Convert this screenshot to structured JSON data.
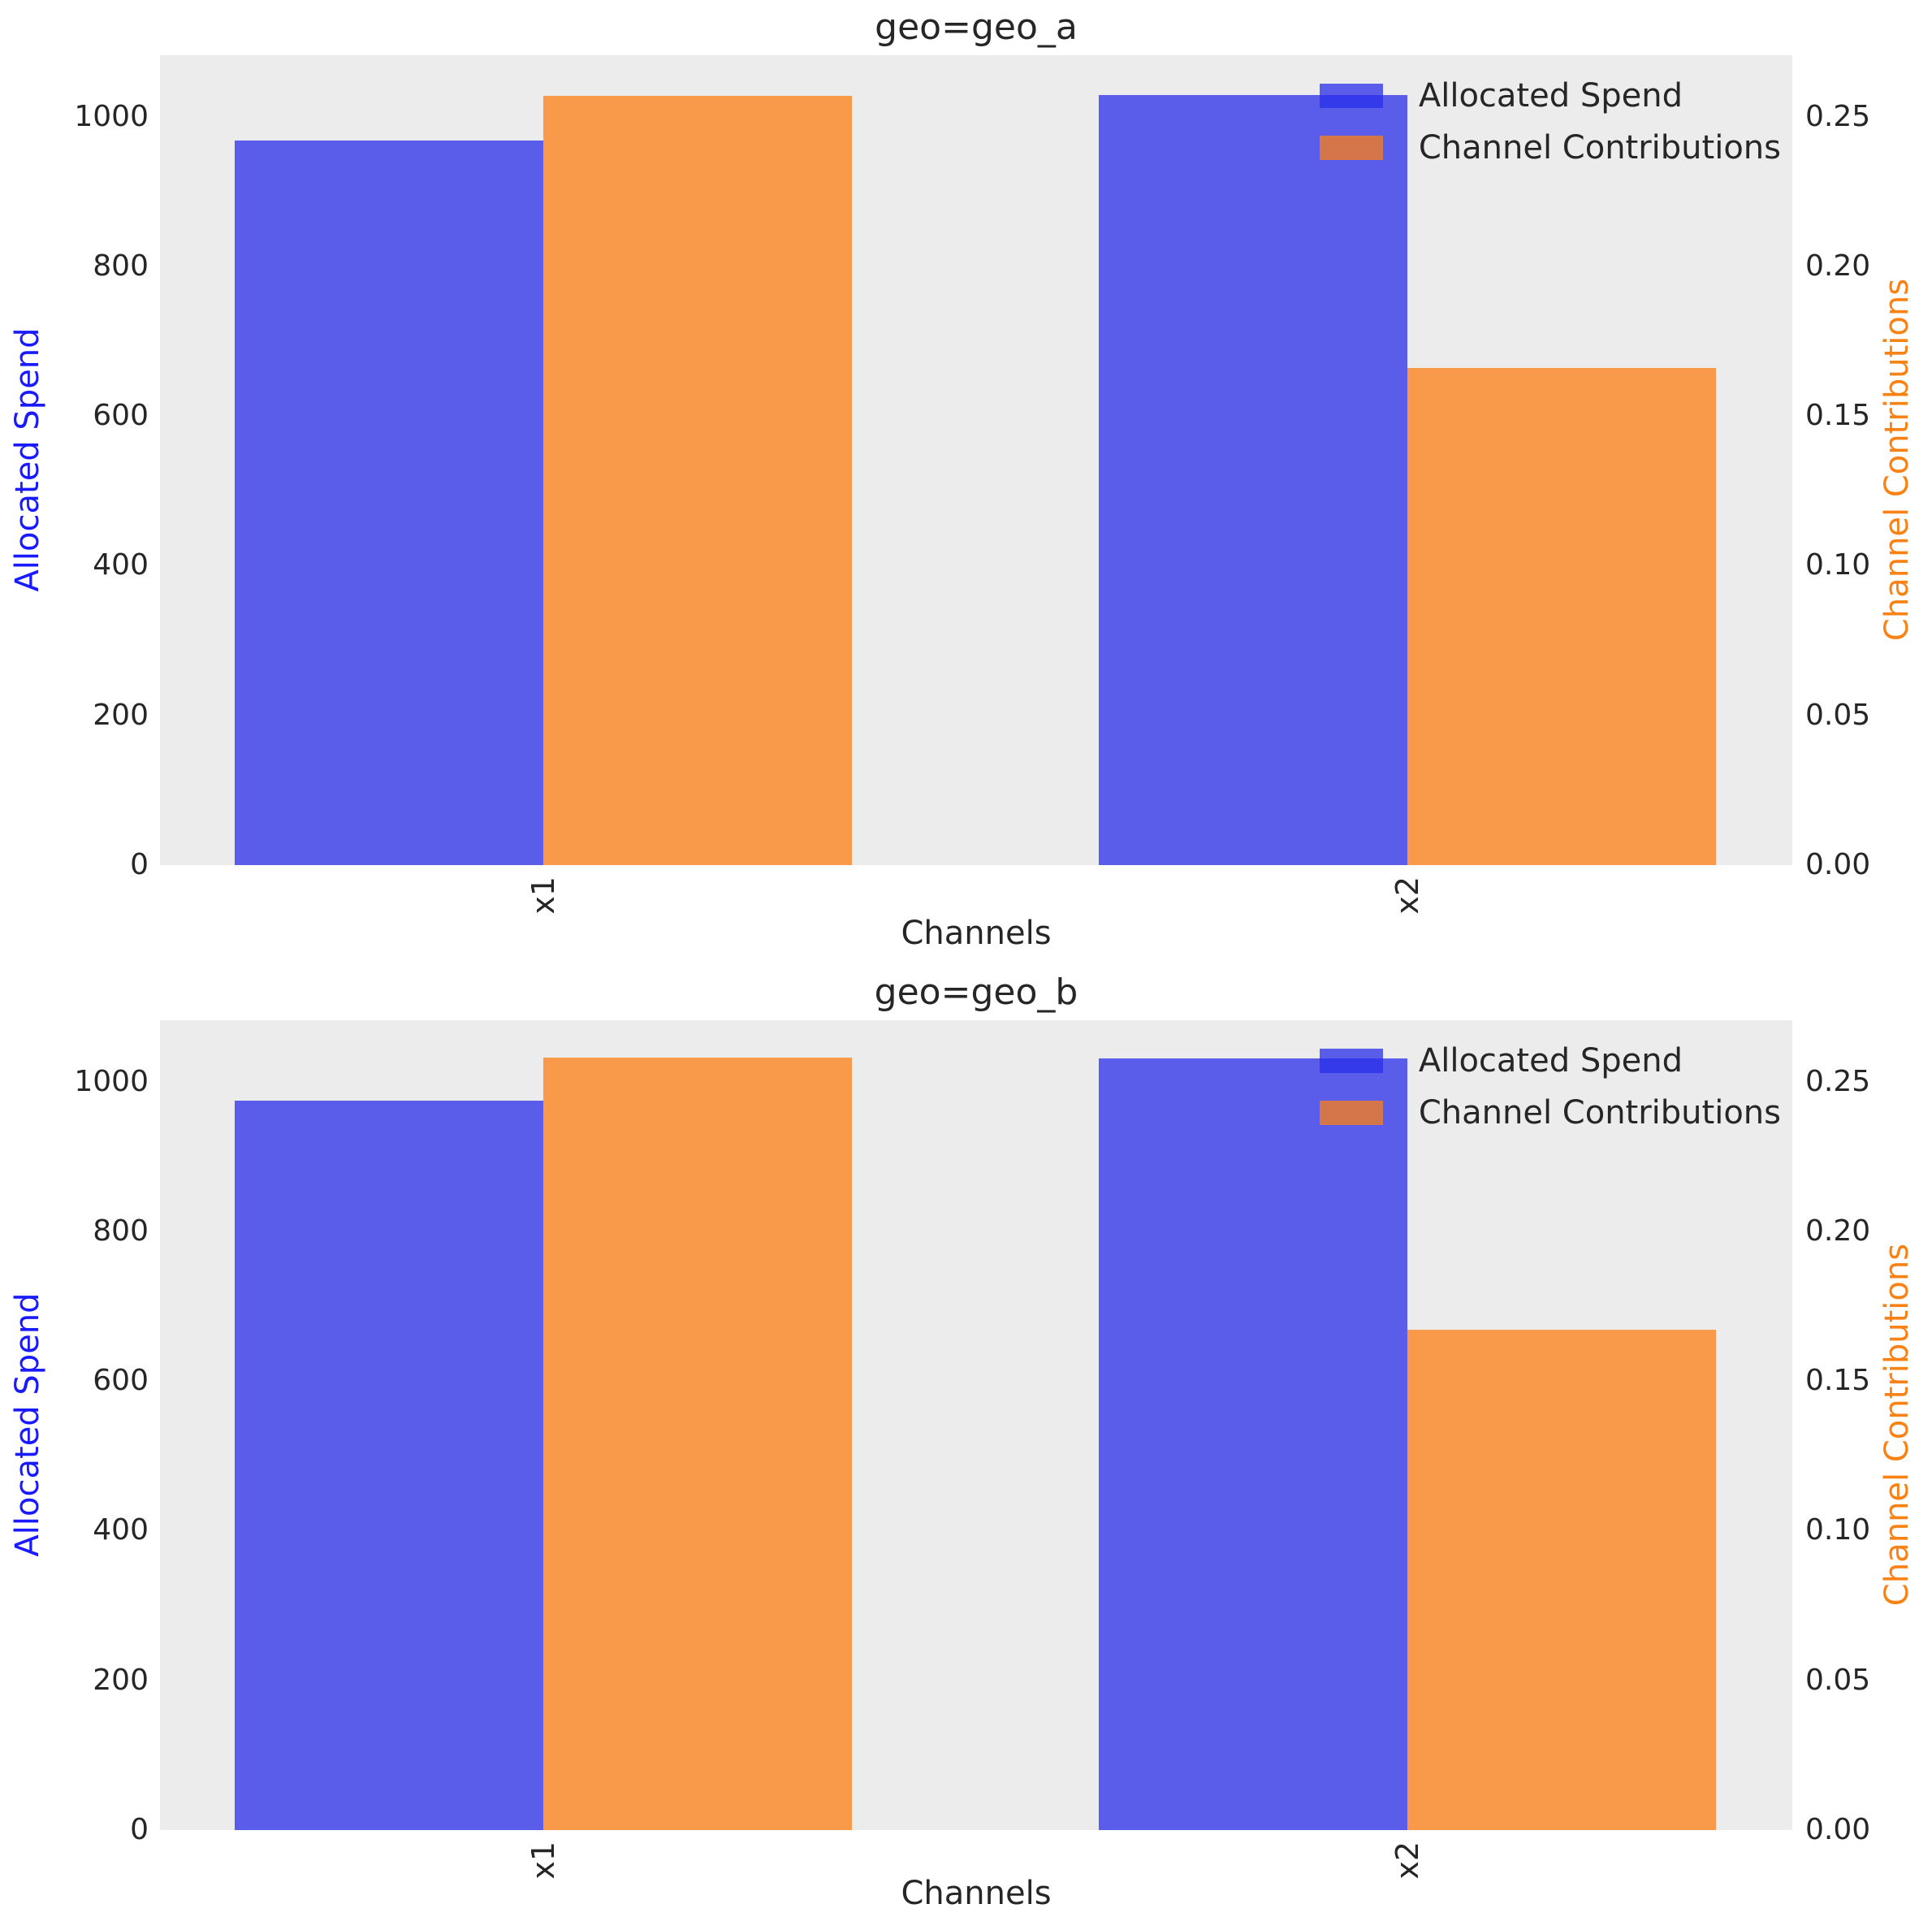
{
  "figure": {
    "background": "#ffffff",
    "plot_background": "#ececec"
  },
  "colors": {
    "spend_bar": "rgba(40,45,232,0.75)",
    "contribution_bar": "rgba(253,126,20,0.75)",
    "spend_axis_label": "#1a1aff",
    "contribution_axis_label": "#fa8114",
    "tick_text": "#262626"
  },
  "chart_data": [
    {
      "type": "bar",
      "title": "geo=geo_a",
      "xlabel": "Channels",
      "ylabel_left": "Allocated Spend",
      "ylabel_right": "Channel Contributions",
      "categories": [
        "x1",
        "x2"
      ],
      "series": [
        {
          "name": "Allocated Spend",
          "axis": "left",
          "values": [
            968,
            1029
          ]
        },
        {
          "name": "Channel Contributions",
          "axis": "right",
          "values": [
            0.257,
            0.166
          ]
        }
      ],
      "yticks_left": [
        0,
        200,
        400,
        600,
        800,
        1000
      ],
      "yticks_right": [
        0.0,
        0.05,
        0.1,
        0.15,
        0.2,
        0.25
      ],
      "ylim_left": [
        0,
        1082
      ],
      "ylim_right": [
        0,
        0.2705
      ],
      "grid": false,
      "legend_position": "upper right",
      "xtick_rotation": 90
    },
    {
      "type": "bar",
      "title": "geo=geo_b",
      "xlabel": "Channels",
      "ylabel_left": "Allocated Spend",
      "ylabel_right": "Channel Contributions",
      "categories": [
        "x1",
        "x2"
      ],
      "series": [
        {
          "name": "Allocated Spend",
          "axis": "left",
          "values": [
            975,
            1031
          ]
        },
        {
          "name": "Channel Contributions",
          "axis": "right",
          "values": [
            0.258,
            0.167
          ]
        }
      ],
      "yticks_left": [
        0,
        200,
        400,
        600,
        800,
        1000
      ],
      "yticks_right": [
        0.0,
        0.05,
        0.1,
        0.15,
        0.2,
        0.25
      ],
      "ylim_left": [
        0,
        1082
      ],
      "ylim_right": [
        0,
        0.2705
      ],
      "grid": false,
      "legend_position": "upper right",
      "xtick_rotation": 90
    }
  ]
}
